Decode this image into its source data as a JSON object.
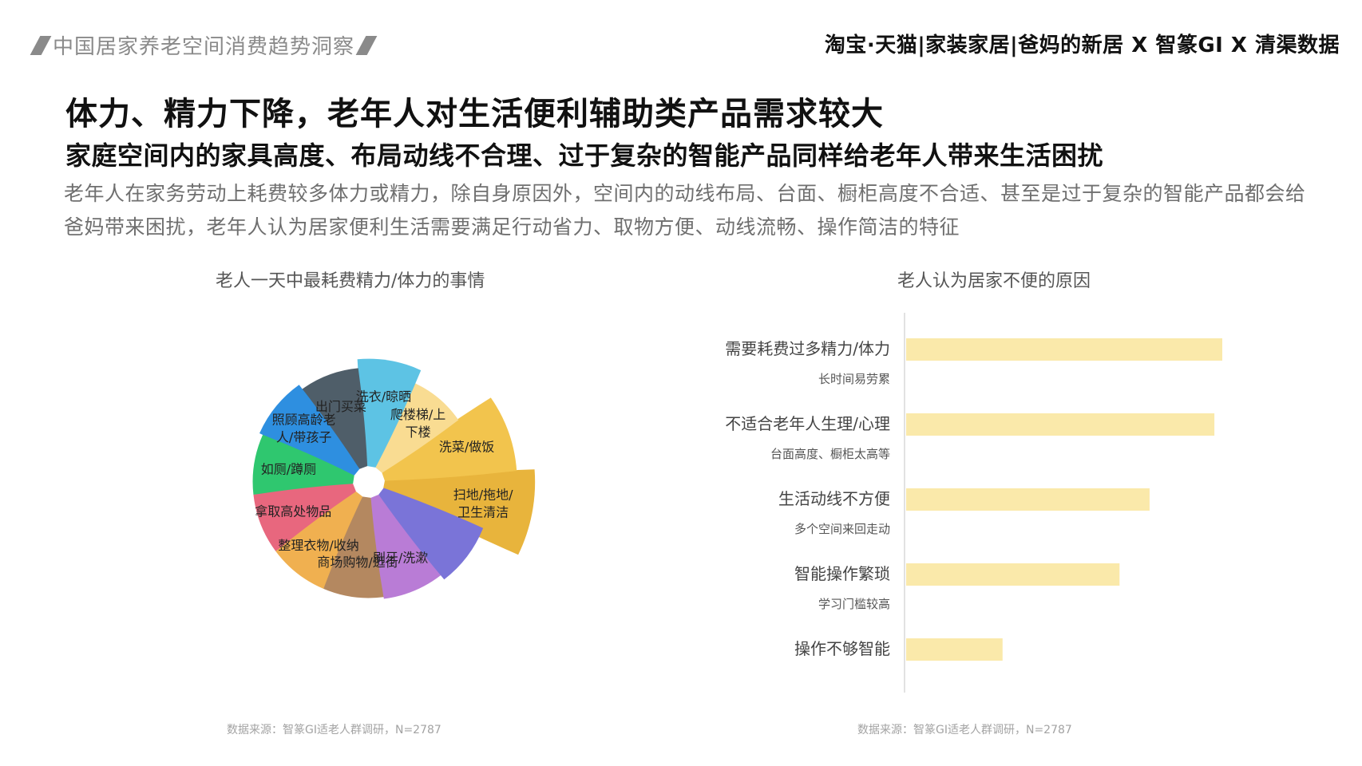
{
  "header": {
    "left_title": "中国居家养老空间消费趋势洞察",
    "right_brands": "淘宝·天猫|家装家居|爸妈的新居 X 智篆GI X 清渠数据"
  },
  "main": {
    "title": "体力、精力下降，老年人对生活便利辅助类产品需求较大",
    "subtitle": "家庭空间内的家具高度、布局动线不合理、过于复杂的智能产品同样给老年人带来生活困扰",
    "description": "老年人在家务劳动上耗费较多体力或精力，除自身原因外，空间内的动线布局、台面、橱柜高度不合适、甚至是过于复杂的智能产品都会给爸妈带来困扰，老年人认为居家便利生活需要满足行动省力、取物方便、动线流畅、操作简洁的特征"
  },
  "chart_data": [
    {
      "type": "pie",
      "title": "老人一天中最耗费精力/体力的事情",
      "source": "数据来源：智篆GI适老人群调研，N=2787",
      "slices": [
        {
          "label": "扫地/拖地/卫生清洁",
          "lines": [
            "扫地/拖地/",
            "卫生清洁"
          ],
          "value": 0.84,
          "color": "#E8B43C"
        },
        {
          "label": "洗菜/做饭",
          "lines": [
            "洗菜/做饭"
          ],
          "value": 0.74,
          "color": "#F2C44D"
        },
        {
          "label": "爬楼梯/上下楼",
          "lines": [
            "爬楼梯/上",
            "下楼"
          ],
          "value": 0.52,
          "color": "#F9DC92"
        },
        {
          "label": "洗衣/晾晒",
          "lines": [
            "洗衣/晾晒"
          ],
          "value": 0.6,
          "color": "#5DC3E4"
        },
        {
          "label": "出门买菜",
          "lines": [
            "出门买菜"
          ],
          "value": 0.55,
          "color": "#4F5E69"
        },
        {
          "label": "照顾高龄老人/带孩子",
          "lines": [
            "照顾高龄老",
            "人/带孩子"
          ],
          "value": 0.58,
          "color": "#2E8FE0"
        },
        {
          "label": "如厕/蹲厕",
          "lines": [
            "如厕/蹲厕"
          ],
          "value": 0.56,
          "color": "#2FC76F"
        },
        {
          "label": "拿取高处物品",
          "lines": [
            "拿取高处物品"
          ],
          "value": 0.56,
          "color": "#E8677E"
        },
        {
          "label": "整理衣物/收纳",
          "lines": [
            "整理衣物/收纳"
          ],
          "value": 0.56,
          "color": "#F0B050"
        },
        {
          "label": "商场购物/逛街",
          "lines": [
            "商场购物/逛街"
          ],
          "value": 0.56,
          "color": "#B48860"
        },
        {
          "label": "刷牙/洗漱",
          "lines": [
            "刷牙/洗漱"
          ],
          "value": 0.57,
          "color": "#B97CD6"
        },
        {
          "label": "",
          "lines": [],
          "value": 0.6,
          "color": "#7A74D8"
        }
      ]
    },
    {
      "type": "bar",
      "orientation": "horizontal",
      "title": "老人认为居家不便的原因",
      "source": "数据来源：智篆GI适老人群调研，N=2787",
      "categories": [
        {
          "label": "需要耗费过多精力/体力",
          "sublabel": "长时间易劳累"
        },
        {
          "label": "不适合老年人生理/心理",
          "sublabel": "台面高度、橱柜太高等"
        },
        {
          "label": "生活动线不方便",
          "sublabel": "多个空间来回走动"
        },
        {
          "label": "智能操作繁琐",
          "sublabel": "学习门槛较高"
        },
        {
          "label": "操作不够智能",
          "sublabel": ""
        }
      ],
      "values": [
        100,
        97.5,
        77,
        67.5,
        30.5
      ],
      "xlim": [
        0,
        100
      ],
      "color": "#FAE9AA"
    }
  ]
}
